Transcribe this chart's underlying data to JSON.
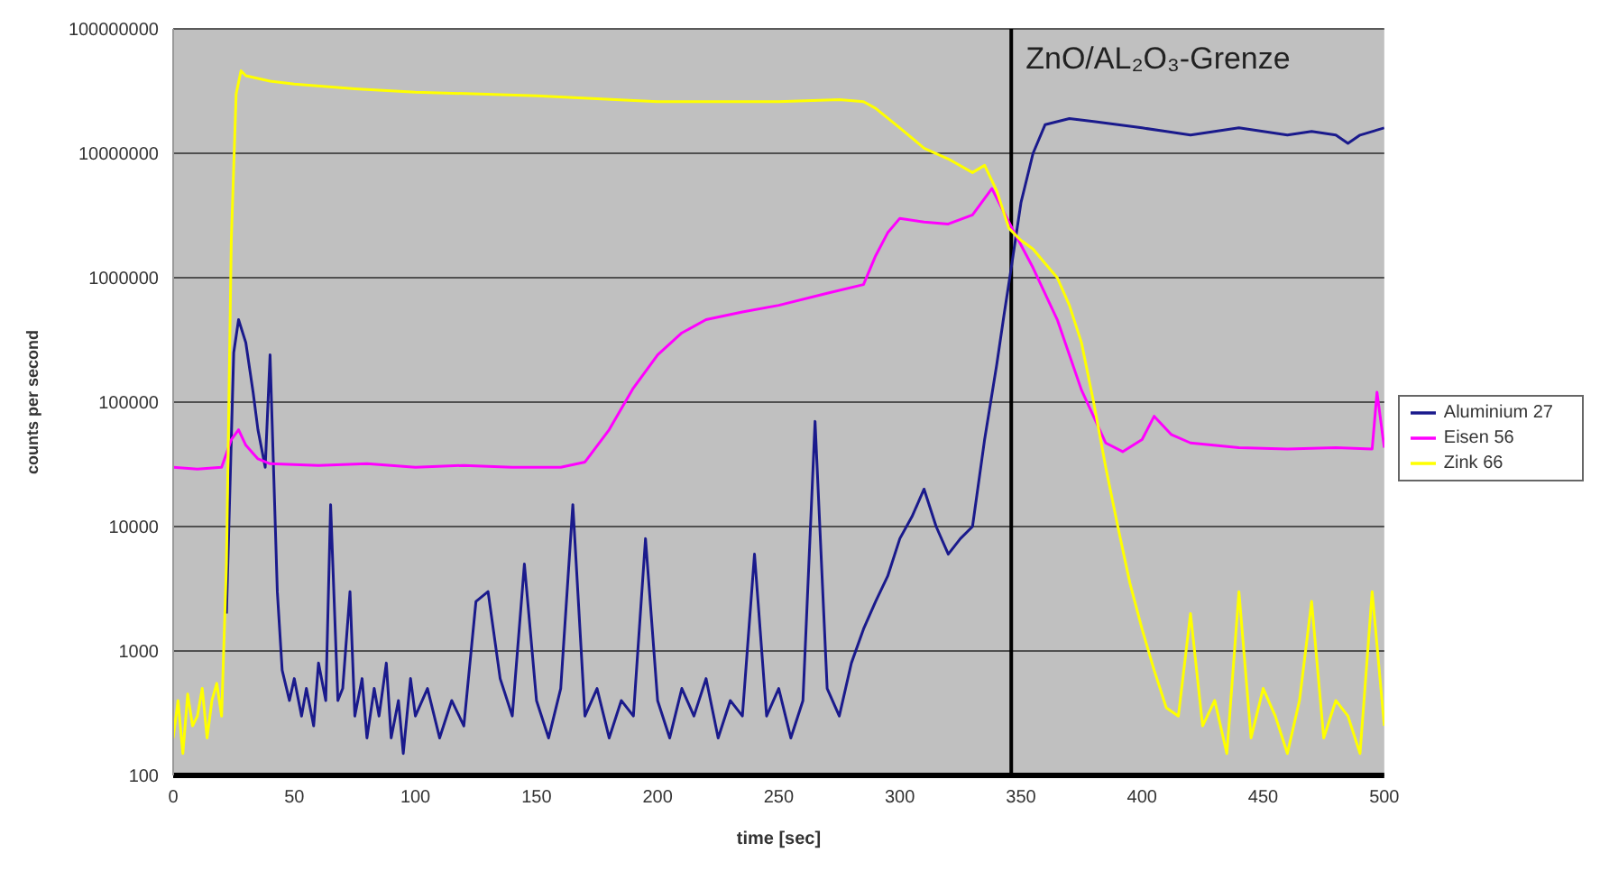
{
  "chart_data": {
    "type": "line",
    "xlabel": "time [sec]",
    "ylabel": "counts per second",
    "log": "y",
    "grid": "y",
    "legend": "right",
    "marker": "none",
    "line_style": "solid",
    "xlim": [
      0,
      500
    ],
    "xticks": [
      0,
      50,
      100,
      150,
      200,
      250,
      300,
      350,
      400,
      450,
      500
    ],
    "ylim": [
      100,
      100000000
    ],
    "yticks": [
      100,
      1000,
      10000,
      100000,
      1000000,
      10000000,
      100000000
    ],
    "ref_lines": [
      {
        "axis": "x",
        "value": 346,
        "label": "ZnO/AL₂O₃-Grenze",
        "color": "#000000"
      }
    ],
    "series": [
      {
        "name": "Aluminium 27",
        "color": "#1a1a8c",
        "x": [
          22,
          25,
          27,
          30,
          33,
          35,
          38,
          40,
          43,
          45,
          48,
          50,
          53,
          55,
          58,
          60,
          63,
          65,
          68,
          70,
          73,
          75,
          78,
          80,
          83,
          85,
          88,
          90,
          93,
          95,
          98,
          100,
          105,
          110,
          115,
          120,
          125,
          130,
          135,
          140,
          145,
          150,
          155,
          160,
          165,
          170,
          175,
          180,
          185,
          190,
          195,
          200,
          205,
          210,
          215,
          220,
          225,
          230,
          235,
          240,
          245,
          250,
          255,
          260,
          265,
          270,
          275,
          280,
          285,
          290,
          295,
          300,
          305,
          310,
          315,
          320,
          325,
          330,
          335,
          340,
          343,
          346,
          350,
          355,
          360,
          370,
          380,
          390,
          400,
          410,
          420,
          430,
          440,
          450,
          460,
          470,
          480,
          485,
          490,
          500
        ],
        "values": [
          2000,
          250000,
          460000,
          300000,
          120000,
          60000,
          30000,
          240000,
          3000,
          700,
          400,
          600,
          300,
          500,
          250,
          800,
          400,
          15000,
          400,
          500,
          3000,
          300,
          600,
          200,
          500,
          300,
          800,
          200,
          400,
          150,
          600,
          300,
          500,
          200,
          400,
          250,
          2500,
          3000,
          600,
          300,
          5000,
          400,
          200,
          500,
          15000,
          300,
          500,
          200,
          400,
          300,
          8000,
          400,
          200,
          500,
          300,
          600,
          200,
          400,
          300,
          6000,
          300,
          500,
          200,
          400,
          70000,
          500,
          300,
          800,
          1500,
          2500,
          4000,
          8000,
          12000,
          20000,
          10000,
          6000,
          8000,
          10000,
          50000,
          200000,
          500000,
          1200000,
          4000000,
          10000000,
          17000000,
          19000000,
          18000000,
          17000000,
          16000000,
          15000000,
          14000000,
          15000000,
          16000000,
          15000000,
          14000000,
          15000000,
          14000000,
          12000000,
          14000000,
          16000000
        ]
      },
      {
        "name": "Eisen 56",
        "color": "#ff00ff",
        "x": [
          0,
          10,
          20,
          24,
          27,
          30,
          35,
          40,
          60,
          80,
          100,
          120,
          140,
          160,
          170,
          180,
          190,
          200,
          210,
          220,
          235,
          250,
          270,
          285,
          290,
          295,
          300,
          310,
          320,
          330,
          338,
          345,
          355,
          365,
          375,
          385,
          392,
          400,
          405,
          412,
          420,
          440,
          460,
          480,
          495,
          497,
          500
        ],
        "values": [
          30000,
          29000,
          30000,
          50000,
          60000,
          45000,
          35000,
          32000,
          31000,
          32000,
          30000,
          31000,
          30000,
          30000,
          33000,
          60000,
          130000,
          240000,
          360000,
          460000,
          530000,
          600000,
          750000,
          880000,
          1500000,
          2300000,
          3000000,
          2800000,
          2700000,
          3200000,
          5200000,
          2800000,
          1200000,
          460000,
          125000,
          47000,
          40000,
          50000,
          77000,
          55000,
          47000,
          43000,
          42000,
          43000,
          42000,
          120000,
          43000
        ]
      },
      {
        "name": "Zink 66",
        "color": "#ffff00",
        "x": [
          0,
          2,
          4,
          6,
          8,
          10,
          12,
          14,
          16,
          18,
          20,
          22,
          24,
          26,
          28,
          30,
          40,
          50,
          75,
          100,
          150,
          200,
          250,
          275,
          285,
          290,
          300,
          310,
          320,
          330,
          335,
          340,
          345,
          350,
          355,
          360,
          365,
          370,
          375,
          380,
          385,
          390,
          395,
          400,
          405,
          410,
          415,
          420,
          425,
          430,
          435,
          440,
          445,
          450,
          455,
          460,
          465,
          470,
          475,
          480,
          485,
          490,
          495,
          500
        ],
        "values": [
          200,
          400,
          150,
          450,
          250,
          300,
          500,
          200,
          400,
          550,
          300,
          5000,
          2000000,
          30000000,
          46000000,
          42000000,
          38000000,
          36000000,
          33000000,
          31000000,
          29000000,
          26000000,
          26000000,
          27000000,
          26000000,
          23000000,
          16000000,
          11000000,
          9000000,
          7000000,
          8000000,
          5000000,
          2500000,
          2000000,
          1700000,
          1300000,
          1000000,
          600000,
          300000,
          100000,
          30000,
          10000,
          3500,
          1500,
          700,
          350,
          300,
          2000,
          250,
          400,
          150,
          3000,
          200,
          500,
          300,
          150,
          400,
          2500,
          200,
          400,
          300,
          150,
          3000,
          250
        ]
      }
    ]
  }
}
